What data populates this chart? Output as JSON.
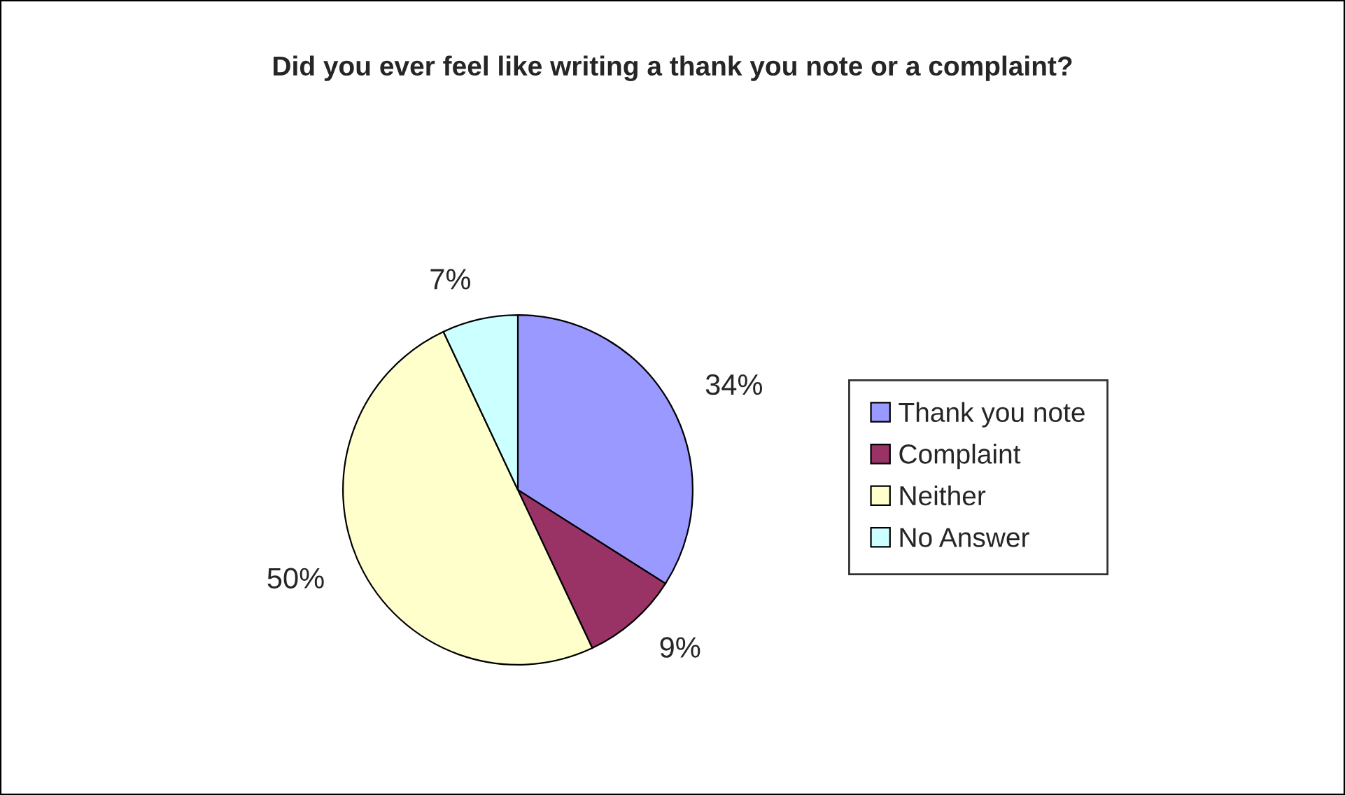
{
  "chart_data": {
    "type": "pie",
    "title": "Did you ever feel like writing a thank you note or a complaint?",
    "categories": [
      "Thank you note",
      "Complaint",
      "Neither",
      "No Answer"
    ],
    "values": [
      34,
      9,
      50,
      7
    ],
    "colors": [
      "#9999ff",
      "#993366",
      "#ffffcc",
      "#ccffff"
    ],
    "value_labels": [
      "34%",
      "9%",
      "50%",
      "7%"
    ],
    "legend": "right"
  }
}
